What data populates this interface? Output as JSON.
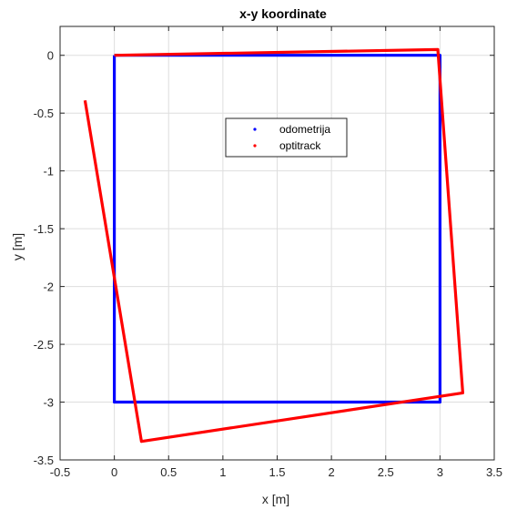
{
  "chart_data": {
    "type": "line",
    "title": "x-y koordinate",
    "xlabel": "x [m]",
    "ylabel": "y [m]",
    "xlim": [
      -0.5,
      3.5
    ],
    "ylim": [
      -3.5,
      0.25
    ],
    "xticks": [
      -0.5,
      0,
      0.5,
      1,
      1.5,
      2,
      2.5,
      3,
      3.5
    ],
    "xtick_labels": [
      "-0.5",
      "0",
      "0.5",
      "1",
      "1.5",
      "2",
      "2.5",
      "3",
      "3.5"
    ],
    "yticks": [
      0,
      -0.5,
      -1,
      -1.5,
      -2,
      -2.5,
      -3,
      -3.5
    ],
    "ytick_labels": [
      "0",
      "-0.5",
      "-1",
      "-1.5",
      "-2",
      "-2.5",
      "-3",
      "-3.5"
    ],
    "grid": true,
    "legend_position": "center",
    "series": [
      {
        "name": "odometrija",
        "color": "#0000ff",
        "x": [
          0,
          3.0,
          3.0,
          0,
          0
        ],
        "y": [
          0,
          0,
          -3.0,
          -3.0,
          0
        ]
      },
      {
        "name": "optitrack",
        "color": "#ff0000",
        "x": [
          0,
          2.98,
          3.21,
          0.25,
          -0.27
        ],
        "y": [
          0,
          0.05,
          -2.92,
          -3.34,
          -0.39
        ]
      }
    ]
  }
}
